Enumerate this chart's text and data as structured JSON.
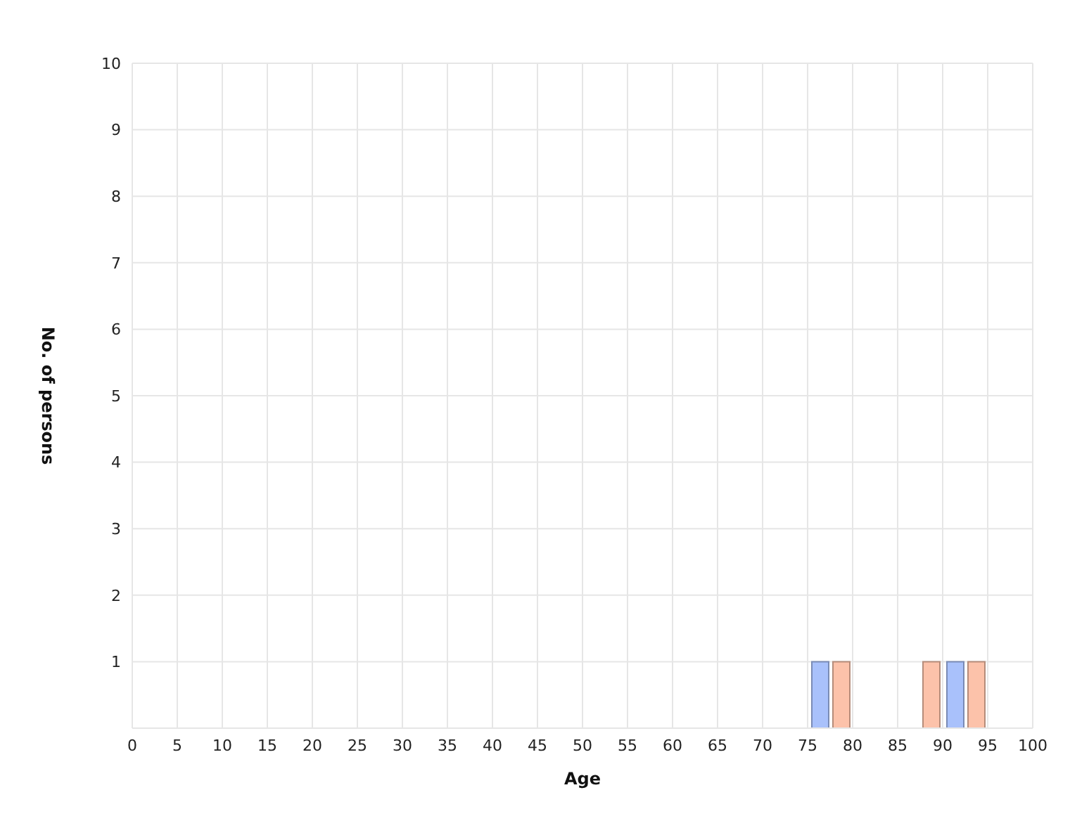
{
  "chart_data": {
    "type": "bar",
    "xlabel": "Age",
    "ylabel": "No. of persons",
    "x": [
      77.5,
      87.5,
      92.5
    ],
    "series": [
      {
        "color": "#a9c1fb",
        "values": [
          1,
          null,
          1
        ]
      },
      {
        "color": "#fcc2aa",
        "values": [
          1,
          1,
          1
        ]
      }
    ],
    "xlim": [
      0,
      100
    ],
    "xticks": [
      0,
      5,
      10,
      15,
      20,
      25,
      30,
      35,
      40,
      45,
      50,
      55,
      60,
      65,
      70,
      75,
      80,
      85,
      90,
      95,
      100
    ],
    "ylim": [
      0,
      10
    ],
    "yticks": [
      {
        "value": 0,
        "label": null
      },
      1,
      2,
      3,
      4,
      5,
      6,
      7,
      8,
      9,
      10
    ],
    "grid": true
  }
}
